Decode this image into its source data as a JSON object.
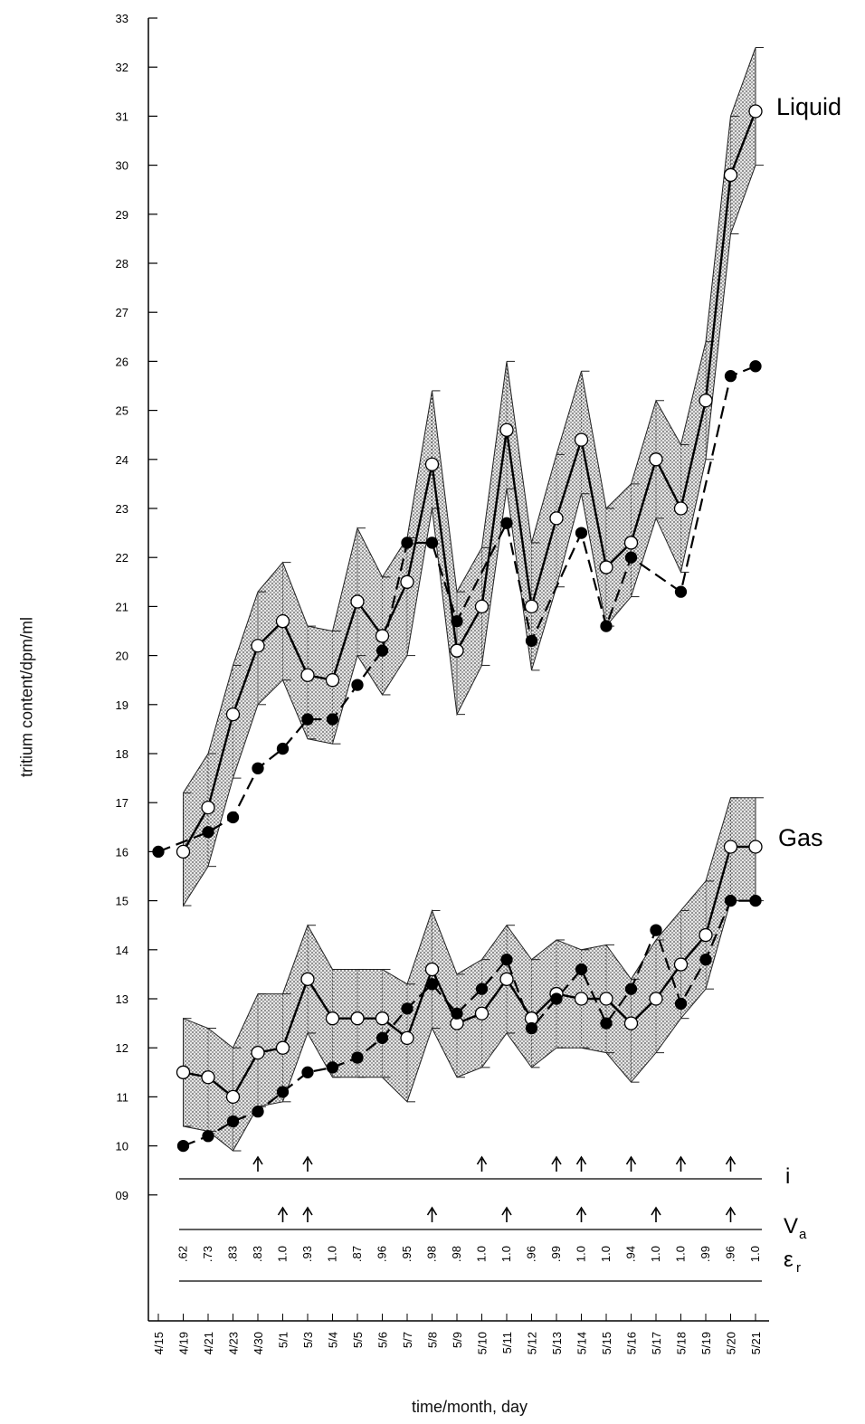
{
  "chart_data": {
    "type": "line",
    "xlabel": "time/month, day",
    "ylabel": "tritium content/dpm/ml",
    "ylim": [
      9,
      33
    ],
    "yticks": [
      "09",
      "10",
      "11",
      "12",
      "13",
      "14",
      "15",
      "16",
      "17",
      "18",
      "19",
      "20",
      "21",
      "22",
      "23",
      "24",
      "25",
      "26",
      "27",
      "28",
      "29",
      "30",
      "31",
      "32",
      "33"
    ],
    "categories": [
      "4/15",
      "4/19",
      "4/21",
      "4/23",
      "4/30",
      "5/1",
      "5/3",
      "5/4",
      "5/5",
      "5/6",
      "5/7",
      "5/8",
      "5/9",
      "5/10",
      "5/11",
      "5/12",
      "5/13",
      "5/14",
      "5/15",
      "5/16",
      "5/17",
      "5/18",
      "5/19",
      "5/20",
      "5/21"
    ],
    "series": [
      {
        "name": "Liquid",
        "marker": "open-circle",
        "line": "solid",
        "x": [
          "4/19",
          "4/21",
          "4/23",
          "4/30",
          "5/1",
          "5/3",
          "5/4",
          "5/5",
          "5/6",
          "5/7",
          "5/8",
          "5/9",
          "5/10",
          "5/11",
          "5/12",
          "5/13",
          "5/14",
          "5/15",
          "5/16",
          "5/17",
          "5/18",
          "5/19",
          "5/20",
          "5/21"
        ],
        "values": [
          16.0,
          16.9,
          18.8,
          20.2,
          20.7,
          19.6,
          19.5,
          21.1,
          20.4,
          21.5,
          23.9,
          20.1,
          21.0,
          24.6,
          21.0,
          22.8,
          24.4,
          21.8,
          22.3,
          24.0,
          23.0,
          25.2,
          29.8,
          31.1
        ],
        "upper": [
          17.2,
          18.0,
          19.8,
          21.3,
          21.9,
          20.6,
          20.5,
          22.6,
          21.6,
          22.4,
          25.4,
          21.3,
          22.2,
          26.0,
          22.3,
          24.1,
          25.8,
          23.0,
          23.5,
          25.2,
          24.3,
          26.4,
          31.0,
          32.4
        ],
        "lower": [
          14.9,
          15.7,
          17.5,
          19.0,
          19.5,
          18.3,
          18.2,
          20.0,
          19.2,
          20.0,
          23.0,
          18.8,
          19.8,
          23.4,
          19.7,
          21.4,
          23.3,
          20.6,
          21.2,
          22.8,
          21.7,
          24.0,
          28.6,
          30.0
        ]
      },
      {
        "name": "",
        "marker": "filled-circle",
        "line": "dashed",
        "x": [
          "4/15",
          "4/21",
          "4/23",
          "4/30",
          "5/1",
          "5/3",
          "5/4",
          "5/5",
          "5/6",
          "5/7",
          "5/8",
          "5/9",
          "5/11",
          "5/12",
          "5/14",
          "5/15",
          "5/16",
          "5/18",
          "5/20",
          "5/21"
        ],
        "values": [
          16.0,
          16.4,
          16.7,
          17.7,
          18.1,
          18.7,
          18.7,
          19.4,
          20.1,
          22.3,
          22.3,
          20.7,
          22.7,
          20.3,
          22.5,
          20.6,
          22.0,
          21.3,
          25.7,
          25.9
        ]
      },
      {
        "name": "Gas",
        "marker": "open-circle",
        "line": "solid",
        "x": [
          "4/19",
          "4/21",
          "4/23",
          "4/30",
          "5/1",
          "5/3",
          "5/4",
          "5/5",
          "5/6",
          "5/7",
          "5/8",
          "5/9",
          "5/10",
          "5/11",
          "5/12",
          "5/13",
          "5/14",
          "5/15",
          "5/16",
          "5/17",
          "5/18",
          "5/19",
          "5/20",
          "5/21"
        ],
        "values": [
          11.5,
          11.4,
          11.0,
          11.9,
          12.0,
          13.4,
          12.6,
          12.6,
          12.6,
          12.2,
          13.6,
          12.5,
          12.7,
          13.4,
          12.6,
          13.1,
          13.0,
          13.0,
          12.5,
          13.0,
          13.7,
          14.3,
          16.1,
          16.1
        ],
        "upper": [
          12.6,
          12.4,
          12.0,
          13.1,
          13.1,
          14.5,
          13.6,
          13.6,
          13.6,
          13.3,
          14.8,
          13.5,
          13.8,
          14.5,
          13.8,
          14.2,
          14.0,
          14.1,
          13.4,
          14.2,
          14.8,
          15.4,
          17.1,
          17.1
        ],
        "lower": [
          10.4,
          10.3,
          9.9,
          10.8,
          10.9,
          12.3,
          11.4,
          11.4,
          11.4,
          10.9,
          12.4,
          11.4,
          11.6,
          12.3,
          11.6,
          12.0,
          12.0,
          11.9,
          11.3,
          11.9,
          12.6,
          13.2,
          15.0,
          15.0
        ]
      },
      {
        "name": "",
        "marker": "filled-circle",
        "line": "dashed",
        "x": [
          "4/19",
          "4/21",
          "4/23",
          "4/30",
          "5/1",
          "5/3",
          "5/4",
          "5/5",
          "5/6",
          "5/7",
          "5/8",
          "5/9",
          "5/10",
          "5/11",
          "5/12",
          "5/13",
          "5/14",
          "5/15",
          "5/16",
          "5/17",
          "5/18",
          "5/19",
          "5/20",
          "5/21"
        ],
        "values": [
          10.0,
          10.2,
          10.5,
          10.7,
          11.1,
          11.5,
          11.6,
          11.8,
          12.2,
          12.8,
          13.3,
          12.7,
          13.2,
          13.8,
          12.4,
          13.0,
          13.6,
          12.5,
          13.2,
          14.4,
          12.9,
          13.8,
          15.0,
          15.0
        ]
      }
    ],
    "annotations": {
      "series_labels": [
        "Liquid",
        "Gas"
      ],
      "i_row": {
        "label": "i",
        "arrows_at": [
          "4/30",
          "5/3",
          "5/10",
          "5/13",
          "5/14",
          "5/16",
          "5/18",
          "5/20"
        ]
      },
      "va_row": {
        "label_main": "V",
        "label_sub": "a",
        "arrows_at": [
          "5/1",
          "5/3",
          "5/8",
          "5/11",
          "5/14",
          "5/17",
          "5/20"
        ]
      },
      "er_row": {
        "label_main": "ε",
        "label_sub": "r",
        "values": [
          ".62",
          ".73",
          ".83",
          ".83",
          "1.0",
          ".93",
          "1.0",
          ".87",
          ".96",
          ".95",
          ".98",
          ".98",
          "1.0",
          "1.0",
          ".96",
          ".99",
          "1.0",
          "1.0",
          ".94",
          "1.0",
          "1.0",
          ".99",
          ".96",
          "1.0"
        ]
      }
    }
  }
}
